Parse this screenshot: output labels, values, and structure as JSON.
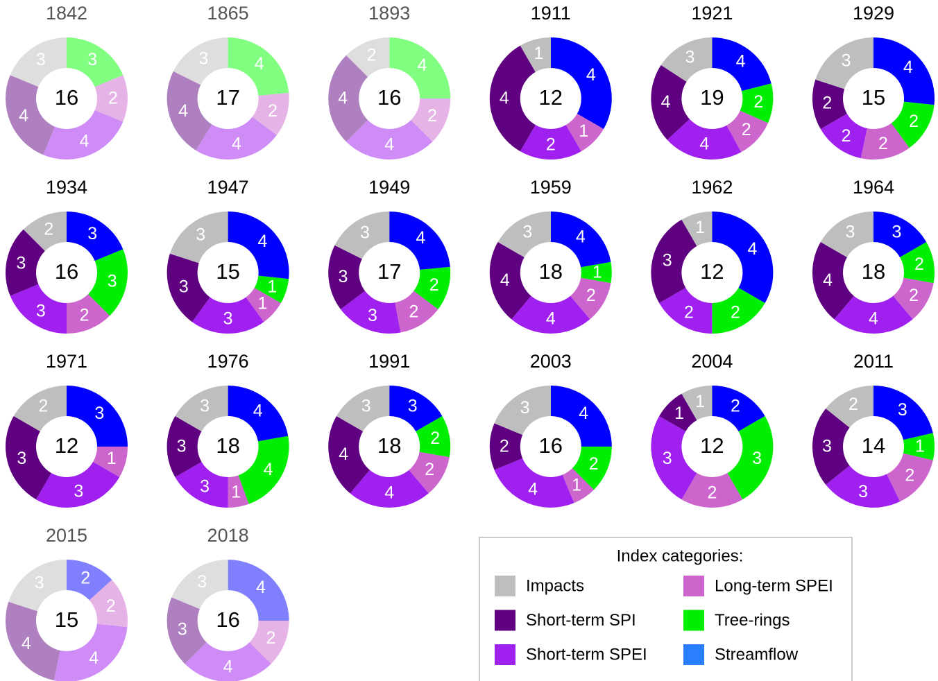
{
  "chart_data": [
    {
      "type": "donut",
      "title": "1842",
      "title_color": "#555555",
      "total": 16,
      "values": [
        null,
        3,
        2,
        4,
        4,
        3
      ],
      "colors": [
        "#8080ff",
        "#80ff80",
        "#e6b3e6",
        "#cf8cf7",
        "#ae80c0",
        "#dedede"
      ]
    },
    {
      "type": "donut",
      "title": "1865",
      "title_color": "#555555",
      "total": 17,
      "values": [
        null,
        4,
        2,
        4,
        4,
        3
      ],
      "colors": [
        "#8080ff",
        "#80ff80",
        "#e6b3e6",
        "#cf8cf7",
        "#ae80c0",
        "#dedede"
      ]
    },
    {
      "type": "donut",
      "title": "1893",
      "title_color": "#555555",
      "total": 16,
      "values": [
        null,
        4,
        2,
        4,
        4,
        2
      ],
      "colors": [
        "#8080ff",
        "#80ff80",
        "#e6b3e6",
        "#cf8cf7",
        "#ae80c0",
        "#dedede"
      ]
    },
    {
      "type": "donut",
      "title": "1911",
      "title_color": "#000000",
      "total": 12,
      "values": [
        4,
        null,
        1,
        2,
        4,
        1
      ],
      "colors": [
        "#0000ff",
        "#00ee00",
        "#cc66cc",
        "#a020f0",
        "#5e0080",
        "#bebebe"
      ]
    },
    {
      "type": "donut",
      "title": "1921",
      "title_color": "#000000",
      "total": 19,
      "values": [
        4,
        2,
        2,
        4,
        4,
        3
      ],
      "colors": [
        "#0000ff",
        "#00ee00",
        "#cc66cc",
        "#a020f0",
        "#5e0080",
        "#bebebe"
      ]
    },
    {
      "type": "donut",
      "title": "1929",
      "title_color": "#000000",
      "total": 15,
      "values": [
        4,
        2,
        2,
        2,
        2,
        3
      ],
      "colors": [
        "#0000ff",
        "#00ee00",
        "#cc66cc",
        "#a020f0",
        "#5e0080",
        "#bebebe"
      ]
    },
    {
      "type": "donut",
      "title": "1934",
      "title_color": "#000000",
      "total": 16,
      "values": [
        3,
        3,
        2,
        3,
        3,
        2
      ],
      "colors": [
        "#0000ff",
        "#00ee00",
        "#cc66cc",
        "#a020f0",
        "#5e0080",
        "#bebebe"
      ]
    },
    {
      "type": "donut",
      "title": "1947",
      "title_color": "#000000",
      "total": 15,
      "values": [
        4,
        1,
        1,
        3,
        3,
        3
      ],
      "colors": [
        "#0000ff",
        "#00ee00",
        "#cc66cc",
        "#a020f0",
        "#5e0080",
        "#bebebe"
      ]
    },
    {
      "type": "donut",
      "title": "1949",
      "title_color": "#000000",
      "total": 17,
      "values": [
        4,
        2,
        2,
        3,
        3,
        3
      ],
      "colors": [
        "#0000ff",
        "#00ee00",
        "#cc66cc",
        "#a020f0",
        "#5e0080",
        "#bebebe"
      ]
    },
    {
      "type": "donut",
      "title": "1959",
      "title_color": "#000000",
      "total": 18,
      "values": [
        4,
        1,
        2,
        4,
        4,
        3
      ],
      "colors": [
        "#0000ff",
        "#00ee00",
        "#cc66cc",
        "#a020f0",
        "#5e0080",
        "#bebebe"
      ]
    },
    {
      "type": "donut",
      "title": "1962",
      "title_color": "#000000",
      "total": 12,
      "values": [
        4,
        2,
        null,
        2,
        3,
        1
      ],
      "colors": [
        "#0000ff",
        "#00ee00",
        "#cc66cc",
        "#a020f0",
        "#5e0080",
        "#bebebe"
      ]
    },
    {
      "type": "donut",
      "title": "1964",
      "title_color": "#000000",
      "total": 18,
      "values": [
        3,
        2,
        2,
        4,
        4,
        3
      ],
      "colors": [
        "#0000ff",
        "#00ee00",
        "#cc66cc",
        "#a020f0",
        "#5e0080",
        "#bebebe"
      ]
    },
    {
      "type": "donut",
      "title": "1971",
      "title_color": "#000000",
      "total": 12,
      "values": [
        3,
        null,
        1,
        3,
        3,
        2
      ],
      "colors": [
        "#0000ff",
        "#00ee00",
        "#cc66cc",
        "#a020f0",
        "#5e0080",
        "#bebebe"
      ]
    },
    {
      "type": "donut",
      "title": "1976",
      "title_color": "#000000",
      "total": 18,
      "values": [
        4,
        4,
        1,
        3,
        3,
        3
      ],
      "colors": [
        "#0000ff",
        "#00ee00",
        "#cc66cc",
        "#a020f0",
        "#5e0080",
        "#bebebe"
      ]
    },
    {
      "type": "donut",
      "title": "1991",
      "title_color": "#000000",
      "total": 18,
      "values": [
        3,
        2,
        2,
        4,
        4,
        3
      ],
      "colors": [
        "#0000ff",
        "#00ee00",
        "#cc66cc",
        "#a020f0",
        "#5e0080",
        "#bebebe"
      ]
    },
    {
      "type": "donut",
      "title": "2003",
      "title_color": "#000000",
      "total": 16,
      "values": [
        4,
        2,
        1,
        4,
        2,
        3
      ],
      "colors": [
        "#0000ff",
        "#00ee00",
        "#cc66cc",
        "#a020f0",
        "#5e0080",
        "#bebebe"
      ]
    },
    {
      "type": "donut",
      "title": "2004",
      "title_color": "#000000",
      "total": 12,
      "values": [
        2,
        3,
        2,
        3,
        1,
        1
      ],
      "colors": [
        "#0000ff",
        "#00ee00",
        "#cc66cc",
        "#a020f0",
        "#5e0080",
        "#bebebe"
      ]
    },
    {
      "type": "donut",
      "title": "2011",
      "title_color": "#000000",
      "total": 14,
      "values": [
        3,
        1,
        2,
        3,
        3,
        2
      ],
      "colors": [
        "#0000ff",
        "#00ee00",
        "#cc66cc",
        "#a020f0",
        "#5e0080",
        "#bebebe"
      ]
    },
    {
      "type": "donut",
      "title": "2015",
      "title_color": "#555555",
      "total": 15,
      "values": [
        2,
        null,
        2,
        4,
        4,
        3
      ],
      "colors": [
        "#8080ff",
        "#80ff80",
        "#e6b3e6",
        "#cf8cf7",
        "#ae80c0",
        "#dedede"
      ]
    },
    {
      "type": "donut",
      "title": "2018",
      "title_color": "#555555",
      "total": 16,
      "values": [
        4,
        null,
        2,
        4,
        3,
        3
      ],
      "colors": [
        "#8080ff",
        "#80ff80",
        "#e6b3e6",
        "#cf8cf7",
        "#ae80c0",
        "#dedede"
      ]
    }
  ],
  "legend": {
    "title": "Index categories:",
    "entries": [
      {
        "name": "Impacts",
        "color": "#bebebe"
      },
      {
        "name": "Short-term SPI",
        "color": "#5e0080"
      },
      {
        "name": "Short-term SPEI",
        "color": "#a020f0"
      },
      {
        "name": "Long-term SPEI",
        "color": "#cc66cc"
      },
      {
        "name": "Tree-rings",
        "color": "#00ee00"
      },
      {
        "name": "Streamflow",
        "color": "#2a7fff"
      }
    ]
  }
}
